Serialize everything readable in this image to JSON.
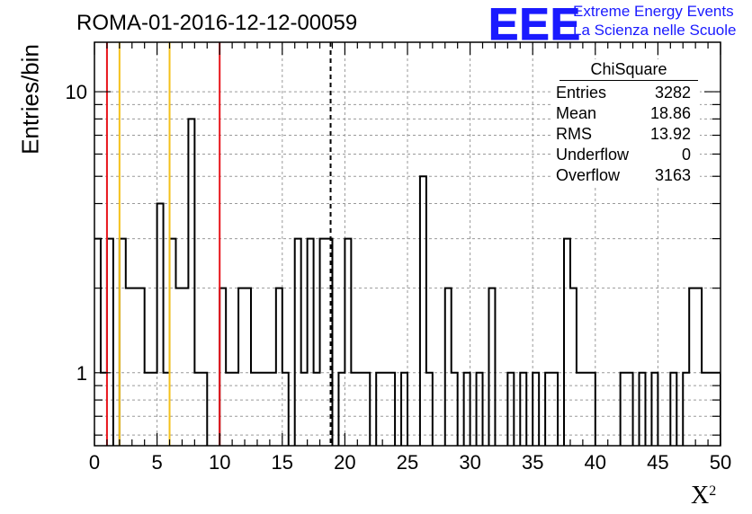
{
  "header": {
    "title": "ROMA-01-2016-12-12-00059",
    "logo": "EEE",
    "logo_line1": "Extreme Energy Events",
    "logo_line2": "La Scienza nelle Scuole"
  },
  "stats": {
    "title": "ChiSquare",
    "rows": [
      {
        "label": "Entries",
        "value": "3282"
      },
      {
        "label": "Mean",
        "value": "18.86"
      },
      {
        "label": "RMS",
        "value": "13.92"
      },
      {
        "label": "Underflow",
        "value": "0"
      },
      {
        "label": "Overflow",
        "value": "3163"
      }
    ]
  },
  "chart_data": {
    "type": "histogram",
    "title": "ROMA-01-2016-12-12-00059",
    "xlabel": "X",
    "xlabel_sup": "2",
    "ylabel": "Entries/bin",
    "xlim": [
      0,
      50
    ],
    "ylim": [
      0.55,
      15
    ],
    "yscale": "log",
    "grid": true,
    "bin_width": 0.5,
    "x_ticks": [
      0,
      5,
      10,
      15,
      20,
      25,
      30,
      35,
      40,
      45,
      50
    ],
    "y_ticks": [
      1,
      10
    ],
    "counts": [
      3,
      1,
      3,
      0,
      3,
      2,
      2,
      2,
      1,
      1,
      4,
      1,
      3,
      2,
      2,
      8,
      1,
      1,
      0,
      0,
      2,
      1,
      1,
      2,
      2,
      1,
      1,
      1,
      1,
      2,
      1,
      0,
      3,
      1,
      3,
      1,
      3,
      3,
      0,
      1,
      3,
      1,
      1,
      1,
      0,
      1,
      1,
      1,
      0,
      1,
      0,
      0,
      5,
      1,
      0,
      0,
      2,
      1,
      0,
      1,
      0,
      1,
      0,
      2,
      0,
      0,
      1,
      0,
      1,
      0,
      1,
      0,
      1,
      1,
      0,
      3,
      2,
      1,
      1,
      1,
      0,
      0,
      0,
      0,
      1,
      1,
      0,
      1,
      0,
      1,
      0,
      0,
      1,
      0,
      1,
      2,
      2,
      1,
      1,
      1
    ],
    "vertical_lines": [
      {
        "x": 1,
        "color": "#e8141b",
        "style": "solid"
      },
      {
        "x": 2,
        "color": "#f4c11a",
        "style": "solid"
      },
      {
        "x": 6,
        "color": "#f4c11a",
        "style": "solid"
      },
      {
        "x": 10,
        "color": "#e8141b",
        "style": "solid"
      },
      {
        "x": 18.86,
        "color": "#000000",
        "style": "dashed"
      }
    ]
  }
}
